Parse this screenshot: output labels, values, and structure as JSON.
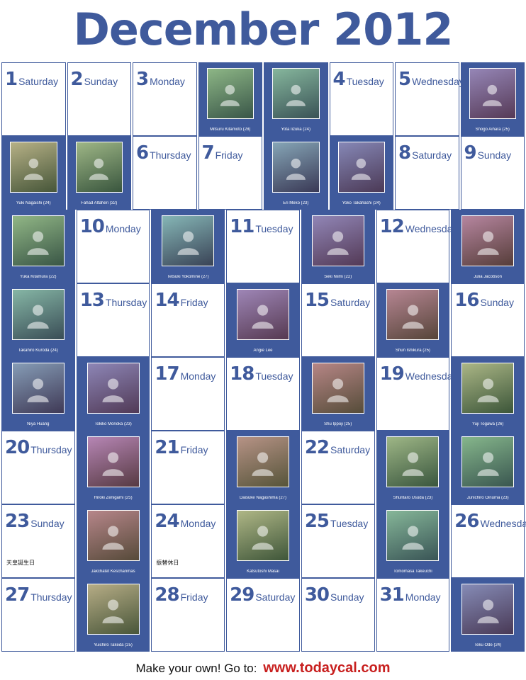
{
  "title": "December 2012",
  "footer": {
    "text": "Make your own! Go to:",
    "url": "www.todaycal.com"
  },
  "colors": {
    "accent": "#3f5a9c",
    "link": "#c8201f"
  },
  "photo_icon": "person-photo-icon",
  "rows": [
    [
      {
        "type": "day",
        "num": "1",
        "weekday": "Saturday"
      },
      {
        "type": "day",
        "num": "2",
        "weekday": "Sunday"
      },
      {
        "type": "day",
        "num": "3",
        "weekday": "Monday"
      },
      {
        "type": "photo",
        "caption": "Mitsuru Kitamoto (28)"
      },
      {
        "type": "photo",
        "caption": "Yota Iizuka (24)"
      },
      {
        "type": "day",
        "num": "4",
        "weekday": "Tuesday"
      },
      {
        "type": "day",
        "num": "5",
        "weekday": "Wednesday"
      },
      {
        "type": "photo",
        "caption": "Shogo Aihara (25)"
      }
    ],
    [
      {
        "type": "photo",
        "caption": "Yuki Nagaishi (24)"
      },
      {
        "type": "photo",
        "caption": "Fahad Altaheri (32)"
      },
      {
        "type": "day",
        "num": "6",
        "weekday": "Thursday"
      },
      {
        "type": "day",
        "num": "7",
        "weekday": "Friday"
      },
      {
        "type": "photo",
        "caption": "Eri Meko (23)"
      },
      {
        "type": "photo",
        "caption": "Yoko Takahashi (24)"
      },
      {
        "type": "day",
        "num": "8",
        "weekday": "Saturday"
      },
      {
        "type": "day",
        "num": "9",
        "weekday": "Sunday"
      }
    ],
    [
      {
        "type": "photo",
        "caption": "Yuka Kitamura (22)"
      },
      {
        "type": "day",
        "num": "10",
        "weekday": "Monday"
      },
      {
        "type": "photo",
        "caption": "Tetsuki Yokomine (27)"
      },
      {
        "type": "day",
        "num": "11",
        "weekday": "Tuesday"
      },
      {
        "type": "photo",
        "caption": "Seki Niimi (22)"
      },
      {
        "type": "day",
        "num": "12",
        "weekday": "Wednesday"
      },
      {
        "type": "photo",
        "caption": "Julia Jacobson"
      }
    ],
    [
      {
        "type": "photo",
        "caption": "Takahiro Kuroda (24)"
      },
      {
        "type": "day",
        "num": "13",
        "weekday": "Thursday"
      },
      {
        "type": "day",
        "num": "14",
        "weekday": "Friday"
      },
      {
        "type": "photo",
        "caption": "Angie Lee"
      },
      {
        "type": "day",
        "num": "15",
        "weekday": "Saturday"
      },
      {
        "type": "photo",
        "caption": "Shun Ishikura (25)"
      },
      {
        "type": "day",
        "num": "16",
        "weekday": "Sunday"
      }
    ],
    [
      {
        "type": "photo",
        "caption": "Niya Huang"
      },
      {
        "type": "photo",
        "caption": "Tokiko Morioka (23)"
      },
      {
        "type": "day",
        "num": "17",
        "weekday": "Monday"
      },
      {
        "type": "day",
        "num": "18",
        "weekday": "Tuesday"
      },
      {
        "type": "photo",
        "caption": "Shu Ippoji (25)"
      },
      {
        "type": "day",
        "num": "19",
        "weekday": "Wednesday"
      },
      {
        "type": "photo",
        "caption": "Yuji Togawa (26)"
      }
    ],
    [
      {
        "type": "day",
        "num": "20",
        "weekday": "Thursday"
      },
      {
        "type": "photo",
        "caption": "Hiroki Zenigami (25)"
      },
      {
        "type": "day",
        "num": "21",
        "weekday": "Friday"
      },
      {
        "type": "photo",
        "caption": "Daisuke Nagashima (27)"
      },
      {
        "type": "day",
        "num": "22",
        "weekday": "Saturday"
      },
      {
        "type": "photo",
        "caption": "Shuntaro Usuda (23)"
      },
      {
        "type": "photo",
        "caption": "Junichiro Oinuma (23)"
      }
    ],
    [
      {
        "type": "day",
        "num": "23",
        "weekday": "Sunday",
        "note": "天皇誕生日"
      },
      {
        "type": "photo",
        "caption": "Jakchatet Keschanmas"
      },
      {
        "type": "day",
        "num": "24",
        "weekday": "Monday",
        "note": "振替休日"
      },
      {
        "type": "photo",
        "caption": "Katsutoshi Masai"
      },
      {
        "type": "day",
        "num": "25",
        "weekday": "Tuesday"
      },
      {
        "type": "photo",
        "caption": "Tomomasa Takeuchi"
      },
      {
        "type": "day",
        "num": "26",
        "weekday": "Wednesday"
      }
    ],
    [
      {
        "type": "day",
        "num": "27",
        "weekday": "Thursday"
      },
      {
        "type": "photo",
        "caption": "Yuichiro Takeda (25)"
      },
      {
        "type": "day",
        "num": "28",
        "weekday": "Friday"
      },
      {
        "type": "day",
        "num": "29",
        "weekday": "Saturday"
      },
      {
        "type": "day",
        "num": "30",
        "weekday": "Sunday"
      },
      {
        "type": "day",
        "num": "31",
        "weekday": "Monday"
      },
      {
        "type": "photo",
        "caption": "Teku Ode (24)"
      }
    ]
  ]
}
